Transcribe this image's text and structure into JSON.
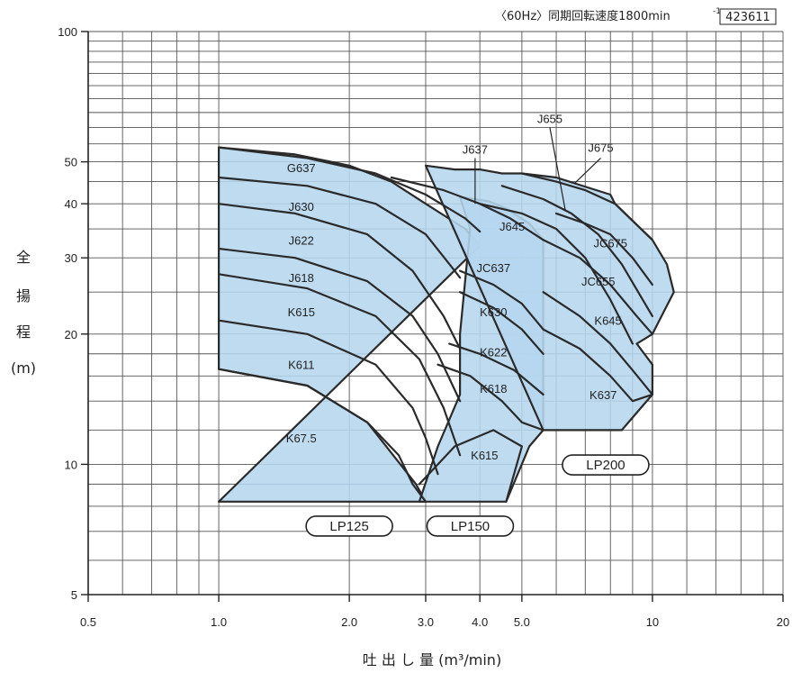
{
  "header": {
    "speed_note": "〈60Hz〉同期回転速度1800min",
    "speed_sup": "-1",
    "code": "423611"
  },
  "chart_data": {
    "type": "area",
    "title": "",
    "xlabel": "吐 出 し 量 (m³/min)",
    "ylabel_chars": [
      "全",
      "揚",
      "程"
    ],
    "ylabel_unit": "(m)",
    "x_scale": "log",
    "y_scale": "log",
    "xlim": [
      0.5,
      20
    ],
    "ylim": [
      5,
      100
    ],
    "x_ticks": [
      {
        "value": 0.5,
        "label": "0.5"
      },
      {
        "value": 1.0,
        "label": "1.0"
      },
      {
        "value": 2.0,
        "label": "2.0"
      },
      {
        "value": 3.0,
        "label": "3.0"
      },
      {
        "value": 4.0,
        "label": "4.0"
      },
      {
        "value": 5.0,
        "label": "5.0"
      },
      {
        "value": 10,
        "label": "10"
      },
      {
        "value": 20,
        "label": "20"
      }
    ],
    "y_ticks": [
      {
        "value": 5,
        "label": "5"
      },
      {
        "value": 10,
        "label": "10"
      },
      {
        "value": 20,
        "label": "20"
      },
      {
        "value": 30,
        "label": "30"
      },
      {
        "value": 40,
        "label": "40"
      },
      {
        "value": 50,
        "label": "50"
      },
      {
        "value": 100,
        "label": "100"
      }
    ],
    "grid": true,
    "fill_color": "#b5d6ee",
    "line_color": "#2a2a2a",
    "regions": [
      {
        "name": "LP125",
        "boundary": [
          [
            1.0,
            8.2
          ],
          [
            3.0,
            8.2
          ],
          [
            2.85,
            9.0
          ],
          [
            2.2,
            12.5
          ],
          [
            1.6,
            15.2
          ],
          [
            1.0,
            16.6
          ],
          [
            1.0,
            20
          ],
          [
            1.0,
            54
          ],
          [
            1.5,
            52
          ],
          [
            2.0,
            49
          ],
          [
            2.5,
            45
          ],
          [
            3.0,
            40
          ],
          [
            3.7,
            35
          ],
          [
            4.0,
            32
          ]
        ]
      },
      {
        "name": "LP150",
        "boundary": [
          [
            2.9,
            8.2
          ],
          [
            4.6,
            8.2
          ],
          [
            5.2,
            11
          ],
          [
            5.6,
            12
          ],
          [
            5.6,
            33
          ],
          [
            5.2,
            36
          ],
          [
            4.6,
            39
          ],
          [
            4.2,
            40.5
          ],
          [
            3.6,
            41.5
          ],
          [
            3.8,
            35
          ],
          [
            3.6,
            20
          ],
          [
            3.6,
            14.5
          ],
          [
            3.2,
            11
          ]
        ]
      },
      {
        "name": "LP200",
        "boundary": [
          [
            5.6,
            12
          ],
          [
            8.5,
            12
          ],
          [
            10,
            14.5
          ],
          [
            10,
            17
          ],
          [
            9.2,
            19
          ],
          [
            10,
            20
          ],
          [
            11.2,
            25
          ],
          [
            10.8,
            29
          ],
          [
            10,
            33
          ],
          [
            8.2,
            40
          ],
          [
            8,
            42
          ],
          [
            6,
            46
          ],
          [
            5,
            47
          ],
          [
            4.5,
            47
          ],
          [
            4,
            48
          ],
          [
            3.5,
            48
          ],
          [
            3,
            49
          ]
        ]
      }
    ],
    "curves": [
      {
        "name": "G637",
        "points": [
          [
            1.0,
            54
          ],
          [
            1.6,
            51
          ],
          [
            2.3,
            47
          ],
          [
            3.0,
            42
          ],
          [
            3.7,
            37
          ],
          [
            4.0,
            34.5
          ]
        ]
      },
      {
        "name": "J630",
        "points": [
          [
            1.0,
            46
          ],
          [
            1.6,
            44
          ],
          [
            2.3,
            40
          ],
          [
            3.0,
            34
          ],
          [
            3.5,
            28
          ],
          [
            3.6,
            27
          ]
        ]
      },
      {
        "name": "J622",
        "points": [
          [
            1.0,
            40
          ],
          [
            1.5,
            38
          ],
          [
            2.2,
            34
          ],
          [
            2.8,
            28
          ],
          [
            3.3,
            22
          ],
          [
            3.6,
            18.5
          ]
        ]
      },
      {
        "name": "J618",
        "points": [
          [
            1.0,
            31.5
          ],
          [
            1.5,
            30
          ],
          [
            2.2,
            26.5
          ],
          [
            2.8,
            22
          ],
          [
            3.2,
            18
          ],
          [
            3.6,
            14
          ]
        ]
      },
      {
        "name": "K615",
        "points": [
          [
            1.0,
            27.5
          ],
          [
            1.6,
            25.5
          ],
          [
            2.3,
            22
          ],
          [
            2.9,
            17.5
          ],
          [
            3.3,
            13.5
          ],
          [
            3.6,
            10.5
          ]
        ]
      },
      {
        "name": "K611",
        "points": [
          [
            1.0,
            21.5
          ],
          [
            1.6,
            20
          ],
          [
            2.3,
            17
          ],
          [
            2.8,
            13.5
          ],
          [
            3.0,
            11.5
          ],
          [
            3.2,
            9.5
          ]
        ]
      },
      {
        "name": "K67.5",
        "points": [
          [
            1.0,
            16.6
          ],
          [
            1.6,
            15.2
          ],
          [
            2.2,
            12.5
          ],
          [
            2.6,
            10.5
          ],
          [
            2.8,
            9
          ],
          [
            3.0,
            8.2
          ]
        ]
      },
      {
        "name": "J637",
        "points": [
          [
            2.5,
            46
          ],
          [
            3.3,
            43
          ],
          [
            4.0,
            40
          ],
          [
            4.7,
            37
          ],
          [
            5.6,
            33
          ]
        ]
      },
      {
        "name": "JC637",
        "points": [
          [
            3.6,
            28
          ],
          [
            4.3,
            26
          ],
          [
            5.0,
            23.5
          ],
          [
            5.6,
            20.5
          ]
        ]
      },
      {
        "name": "K630",
        "points": [
          [
            3.6,
            25
          ],
          [
            4.3,
            23
          ],
          [
            5.0,
            20.5
          ],
          [
            5.6,
            18
          ]
        ]
      },
      {
        "name": "K622",
        "points": [
          [
            3.4,
            19
          ],
          [
            4.0,
            18
          ],
          [
            4.8,
            16.5
          ],
          [
            5.6,
            14.5
          ]
        ]
      },
      {
        "name": "K618",
        "points": [
          [
            3.2,
            17
          ],
          [
            3.8,
            16
          ],
          [
            4.5,
            14
          ],
          [
            5.0,
            12.5
          ],
          [
            5.6,
            12
          ]
        ]
      },
      {
        "name": "K615",
        "points": [
          [
            2.9,
            9
          ],
          [
            3.5,
            11
          ],
          [
            4.3,
            12
          ],
          [
            5.0,
            11
          ],
          [
            4.6,
            8.2
          ]
        ]
      },
      {
        "name": "J645",
        "points": [
          [
            4.0,
            40
          ],
          [
            5.0,
            38
          ],
          [
            6.0,
            35
          ],
          [
            7.0,
            30
          ],
          [
            8.0,
            24
          ],
          [
            9.0,
            19
          ]
        ]
      },
      {
        "name": "J655",
        "points": [
          [
            4.5,
            44
          ],
          [
            5.6,
            41
          ],
          [
            6.5,
            38
          ],
          [
            7.5,
            34
          ],
          [
            8.5,
            29
          ],
          [
            10.0,
            22
          ]
        ]
      },
      {
        "name": "J675",
        "points": [
          [
            5.0,
            47
          ],
          [
            6.0,
            45
          ],
          [
            7.0,
            43
          ],
          [
            8.2,
            40
          ],
          [
            10.0,
            33
          ]
        ]
      },
      {
        "name": "JC675",
        "points": [
          [
            6.0,
            38
          ],
          [
            7.0,
            36
          ],
          [
            8.0,
            34
          ],
          [
            9.0,
            30
          ],
          [
            10.0,
            26
          ]
        ]
      },
      {
        "name": "JC655",
        "points": [
          [
            5.6,
            33
          ],
          [
            6.8,
            30
          ],
          [
            8.0,
            26
          ],
          [
            9.2,
            22
          ],
          [
            10.0,
            20
          ]
        ]
      },
      {
        "name": "K645",
        "points": [
          [
            5.6,
            25
          ],
          [
            6.8,
            22
          ],
          [
            8.0,
            19
          ],
          [
            9.0,
            16.5
          ],
          [
            10.0,
            14.5
          ]
        ]
      },
      {
        "name": "K637",
        "points": [
          [
            5.6,
            20.5
          ],
          [
            6.8,
            18.5
          ],
          [
            8.0,
            16
          ],
          [
            9.0,
            14
          ],
          [
            10.0,
            14.5
          ]
        ]
      }
    ],
    "annotations": [
      {
        "text": "G637",
        "x": 1.55,
        "y": 48.5
      },
      {
        "text": "J630",
        "x": 1.55,
        "y": 39.5
      },
      {
        "text": "J622",
        "x": 1.55,
        "y": 33
      },
      {
        "text": "J618",
        "x": 1.55,
        "y": 27
      },
      {
        "text": "K615",
        "x": 1.55,
        "y": 22.5
      },
      {
        "text": "K611",
        "x": 1.55,
        "y": 17
      },
      {
        "text": "K67.5",
        "x": 1.55,
        "y": 11.5
      },
      {
        "text": "J637",
        "x": 3.9,
        "y": 53.5
      },
      {
        "text": "J655",
        "x": 5.8,
        "y": 63
      },
      {
        "text": "J675",
        "x": 7.6,
        "y": 54
      },
      {
        "text": "J645",
        "x": 4.75,
        "y": 35.5
      },
      {
        "text": "JC675",
        "x": 8.0,
        "y": 32.5
      },
      {
        "text": "JC637",
        "x": 4.3,
        "y": 28.5
      },
      {
        "text": "JC655",
        "x": 7.5,
        "y": 26.5
      },
      {
        "text": "K630",
        "x": 4.3,
        "y": 22.5
      },
      {
        "text": "K645",
        "x": 7.9,
        "y": 21.5
      },
      {
        "text": "K622",
        "x": 4.3,
        "y": 18.2
      },
      {
        "text": "K618",
        "x": 4.3,
        "y": 15
      },
      {
        "text": "K637",
        "x": 7.7,
        "y": 14.5
      },
      {
        "text": "K615",
        "x": 4.1,
        "y": 10.5
      }
    ],
    "badges": [
      {
        "text": "LP125",
        "x": 2.0,
        "y": 7.2
      },
      {
        "text": "LP150",
        "x": 3.8,
        "y": 7.2
      },
      {
        "text": "LP200",
        "x": 7.8,
        "y": 9.97
      }
    ]
  }
}
